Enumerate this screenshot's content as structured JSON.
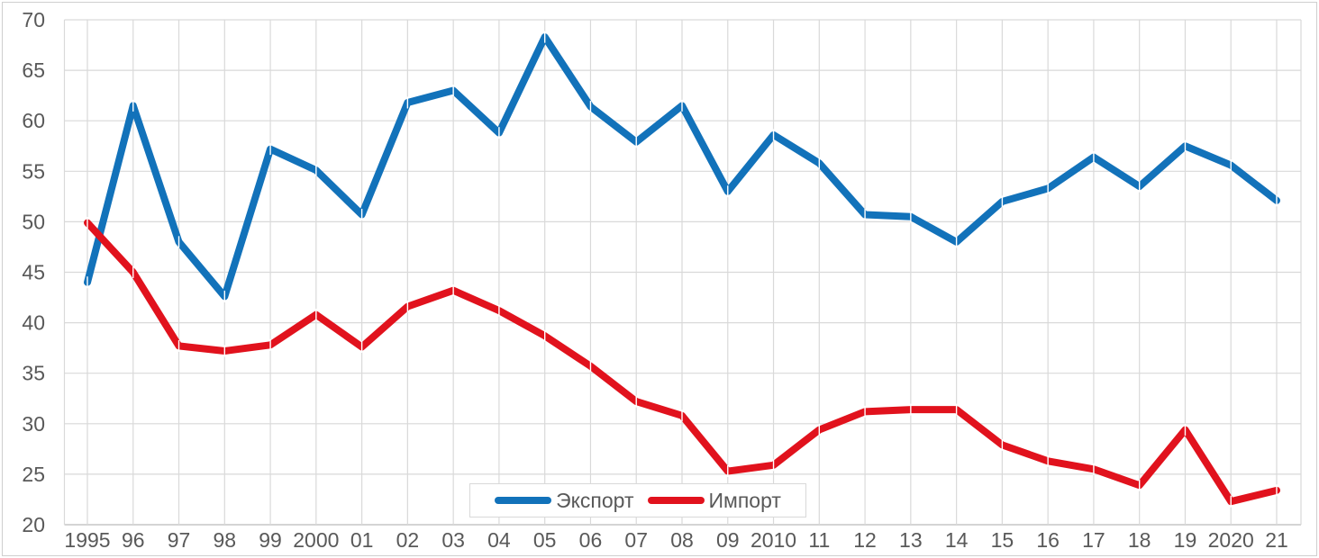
{
  "chart_data": {
    "type": "line",
    "title": "",
    "xlabel": "",
    "ylabel": "",
    "categories": [
      "1995",
      "96",
      "97",
      "98",
      "99",
      "2000",
      "01",
      "02",
      "03",
      "04",
      "05",
      "06",
      "07",
      "08",
      "09",
      "2010",
      "11",
      "12",
      "13",
      "14",
      "15",
      "16",
      "17",
      "18",
      "19",
      "2020",
      "21"
    ],
    "series": [
      {
        "name": "Экспорт",
        "color": "#1272BA",
        "values": [
          44.0,
          61.5,
          48.0,
          42.6,
          57.2,
          55.1,
          50.7,
          61.8,
          63.0,
          58.8,
          68.3,
          61.4,
          57.9,
          61.5,
          53.0,
          58.6,
          55.8,
          50.7,
          50.5,
          48.0,
          52.0,
          53.3,
          56.4,
          53.5,
          57.5,
          55.6,
          52.1
        ]
      },
      {
        "name": "Импорт",
        "color": "#E1121D",
        "values": [
          49.9,
          45.0,
          37.7,
          37.2,
          37.8,
          40.8,
          37.6,
          41.6,
          43.2,
          41.2,
          38.7,
          35.7,
          32.2,
          30.8,
          25.3,
          25.9,
          29.4,
          31.2,
          31.4,
          31.4,
          27.9,
          26.3,
          25.5,
          23.9,
          29.4,
          22.3,
          23.4
        ]
      }
    ],
    "ylim": [
      20,
      70
    ],
    "yticks": [
      20,
      25,
      30,
      35,
      40,
      45,
      50,
      55,
      60,
      65,
      70
    ],
    "grid": true,
    "legend_position": "bottom-center-inside",
    "colors": {
      "grid": "#D9D9D9",
      "axis": "#C6C6C6",
      "tick_text": "#595959",
      "background": "#FFFFFF",
      "border": "#CFCFCF"
    }
  }
}
